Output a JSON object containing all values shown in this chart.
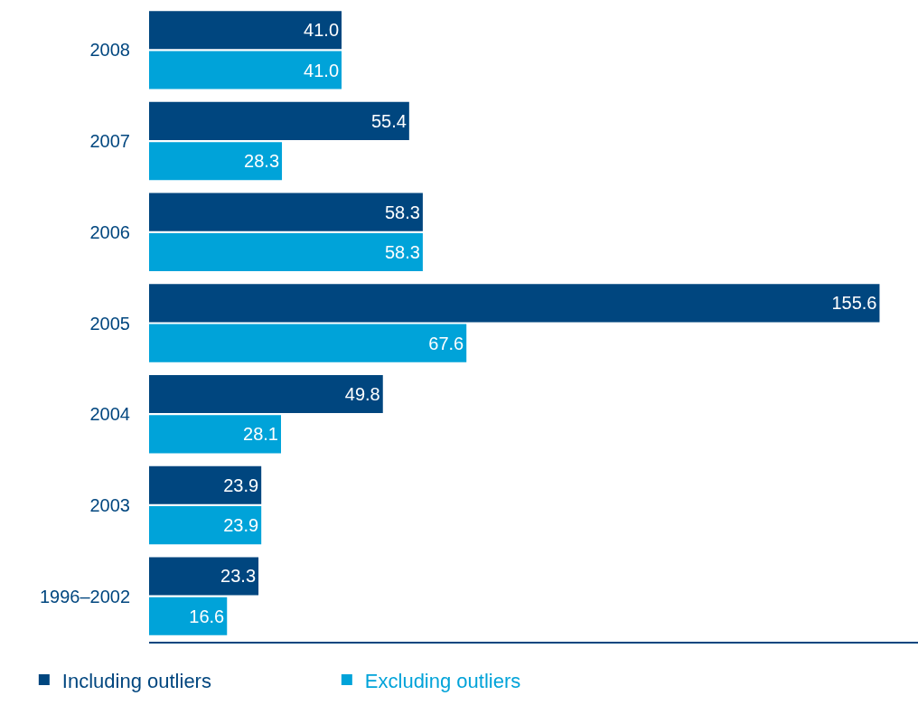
{
  "chart_data": {
    "type": "bar",
    "orientation": "horizontal",
    "categories": [
      "2008",
      "2007",
      "2006",
      "2005",
      "2004",
      "2003",
      "1996–2002"
    ],
    "series": [
      {
        "name": "Including outliers",
        "color": "#00467f",
        "values": [
          41.0,
          55.4,
          58.3,
          155.6,
          49.8,
          23.9,
          23.3
        ],
        "value_labels": [
          "41.0",
          "55.4",
          "58.3",
          "155.6",
          "49.8",
          "23.9",
          "23.3"
        ]
      },
      {
        "name": "Excluding outliers",
        "color": "#00a3d9",
        "values": [
          41.0,
          28.3,
          58.3,
          67.6,
          28.1,
          23.9,
          16.6
        ],
        "value_labels": [
          "41.0",
          "28.3",
          "58.3",
          "67.6",
          "28.1",
          "23.9",
          "16.6"
        ]
      }
    ],
    "legend": "bottom left",
    "tick_labels": "y"
  }
}
